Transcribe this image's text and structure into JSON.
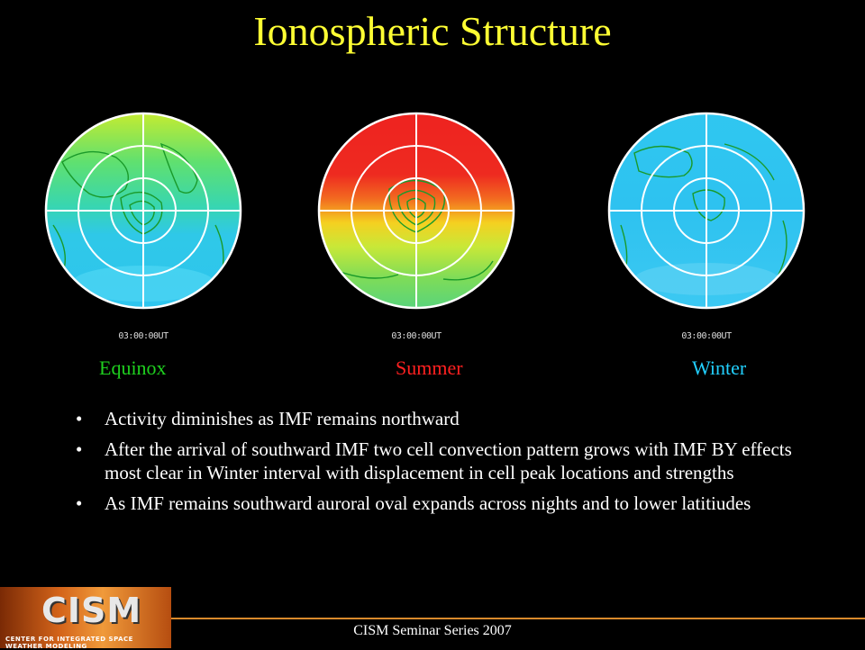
{
  "title": "Ionospheric Structure",
  "maps": [
    {
      "label": "Equinox",
      "timestamp": "03:00:00UT",
      "label_color": "#1fd01f"
    },
    {
      "label": "Summer",
      "timestamp": "03:00:00UT",
      "label_color": "#ff2020"
    },
    {
      "label": "Winter",
      "timestamp": "03:00:00UT",
      "label_color": "#22d0ff"
    }
  ],
  "bullets": [
    "Activity diminishes as IMF remains northward",
    "After the arrival of southward IMF two cell convection pattern grows with  IMF BY effects most clear in Winter interval with displacement in cell peak locations and strengths",
    "As IMF remains southward auroral oval expands across nights and to lower latitiudes"
  ],
  "bullet_symbol": "•",
  "logo": {
    "name": "CISM",
    "subtitle": "CENTER FOR INTEGRATED SPACE WEATHER MODELING"
  },
  "footer": "CISM Seminar Series 2007",
  "colors": {
    "title": "#ffff33",
    "background": "#000000",
    "contours": "#1a9a2a",
    "grid": "#ffffff"
  }
}
